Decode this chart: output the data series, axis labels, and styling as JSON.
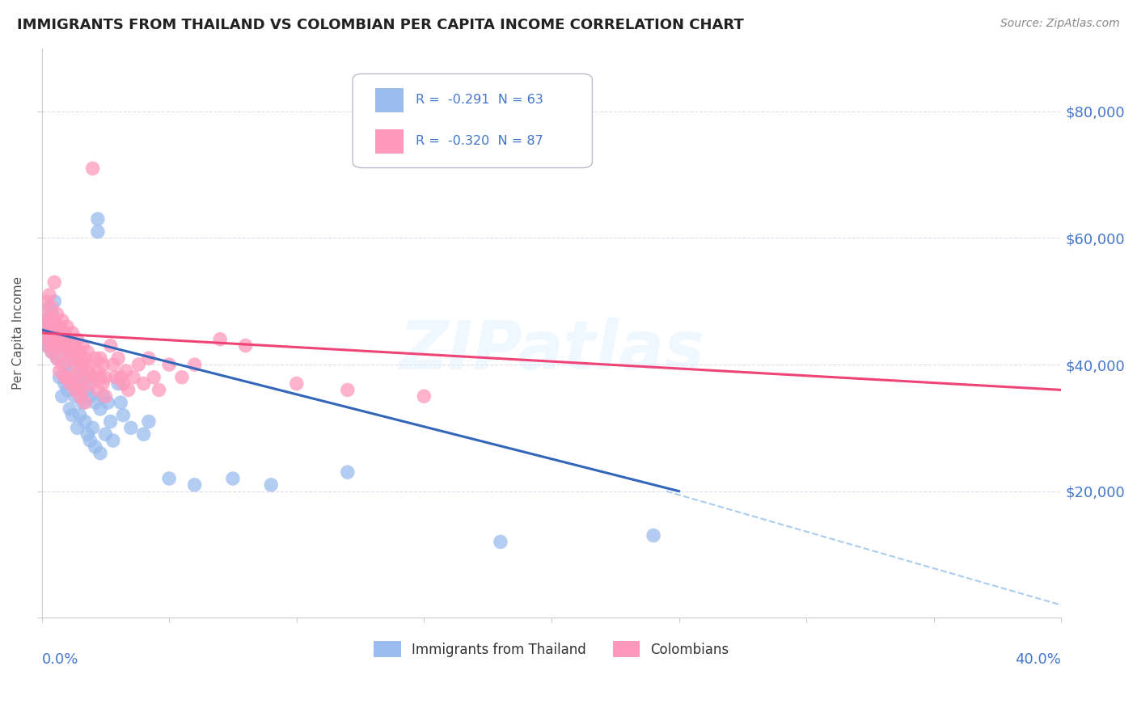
{
  "title": "IMMIGRANTS FROM THAILAND VS COLOMBIAN PER CAPITA INCOME CORRELATION CHART",
  "source": "Source: ZipAtlas.com",
  "ylabel": "Per Capita Income",
  "yticks": [
    0,
    20000,
    40000,
    60000,
    80000
  ],
  "ytick_labels": [
    "",
    "$20,000",
    "$40,000",
    "$60,000",
    "$80,000"
  ],
  "xmin": 0.0,
  "xmax": 0.4,
  "ymin": 0,
  "ymax": 90000,
  "color_thailand": "#99BBEE",
  "color_colombia": "#FF99BB",
  "color_line_thailand": "#3366BB",
  "color_line_colombia": "#EE4477",
  "color_dashed": "#AACCEE",
  "color_axis_labels": "#4477CC",
  "watermark": "ZIPatlas",
  "thailand_line": [
    0.0,
    45500,
    0.25,
    20000
  ],
  "colombia_line": [
    0.0,
    45000,
    0.4,
    36000
  ],
  "dashed_line": [
    0.245,
    20000,
    0.4,
    2000
  ],
  "thailand_scatter": [
    [
      0.001,
      47000
    ],
    [
      0.002,
      46000
    ],
    [
      0.002,
      43000
    ],
    [
      0.003,
      49000
    ],
    [
      0.003,
      44000
    ],
    [
      0.004,
      48000
    ],
    [
      0.004,
      42000
    ],
    [
      0.005,
      50000
    ],
    [
      0.005,
      45000
    ],
    [
      0.006,
      44000
    ],
    [
      0.006,
      41000
    ],
    [
      0.007,
      46000
    ],
    [
      0.007,
      38000
    ],
    [
      0.008,
      43000
    ],
    [
      0.008,
      35000
    ],
    [
      0.009,
      40000
    ],
    [
      0.009,
      37000
    ],
    [
      0.01,
      44000
    ],
    [
      0.01,
      36000
    ],
    [
      0.011,
      42000
    ],
    [
      0.011,
      33000
    ],
    [
      0.012,
      39000
    ],
    [
      0.012,
      32000
    ],
    [
      0.013,
      41000
    ],
    [
      0.013,
      35000
    ],
    [
      0.014,
      38000
    ],
    [
      0.014,
      30000
    ],
    [
      0.015,
      37000
    ],
    [
      0.015,
      32000
    ],
    [
      0.016,
      40000
    ],
    [
      0.016,
      34000
    ],
    [
      0.017,
      38000
    ],
    [
      0.017,
      31000
    ],
    [
      0.018,
      36000
    ],
    [
      0.018,
      29000
    ],
    [
      0.019,
      35000
    ],
    [
      0.019,
      28000
    ],
    [
      0.02,
      38000
    ],
    [
      0.02,
      30000
    ],
    [
      0.021,
      34000
    ],
    [
      0.021,
      27000
    ],
    [
      0.022,
      63000
    ],
    [
      0.022,
      61000
    ],
    [
      0.023,
      33000
    ],
    [
      0.023,
      26000
    ],
    [
      0.024,
      35000
    ],
    [
      0.025,
      29000
    ],
    [
      0.026,
      34000
    ],
    [
      0.027,
      31000
    ],
    [
      0.028,
      28000
    ],
    [
      0.03,
      37000
    ],
    [
      0.031,
      34000
    ],
    [
      0.032,
      32000
    ],
    [
      0.035,
      30000
    ],
    [
      0.04,
      29000
    ],
    [
      0.042,
      31000
    ],
    [
      0.05,
      22000
    ],
    [
      0.06,
      21000
    ],
    [
      0.075,
      22000
    ],
    [
      0.09,
      21000
    ],
    [
      0.12,
      23000
    ],
    [
      0.18,
      12000
    ],
    [
      0.24,
      13000
    ]
  ],
  "colombia_scatter": [
    [
      0.001,
      48000
    ],
    [
      0.001,
      45000
    ],
    [
      0.002,
      50000
    ],
    [
      0.002,
      46000
    ],
    [
      0.002,
      43000
    ],
    [
      0.003,
      51000
    ],
    [
      0.003,
      47000
    ],
    [
      0.003,
      44000
    ],
    [
      0.004,
      49000
    ],
    [
      0.004,
      45000
    ],
    [
      0.004,
      42000
    ],
    [
      0.005,
      53000
    ],
    [
      0.005,
      47000
    ],
    [
      0.005,
      43000
    ],
    [
      0.006,
      48000
    ],
    [
      0.006,
      45000
    ],
    [
      0.006,
      41000
    ],
    [
      0.007,
      46000
    ],
    [
      0.007,
      43000
    ],
    [
      0.007,
      39000
    ],
    [
      0.008,
      47000
    ],
    [
      0.008,
      44000
    ],
    [
      0.008,
      40000
    ],
    [
      0.009,
      45000
    ],
    [
      0.009,
      43000
    ],
    [
      0.009,
      38000
    ],
    [
      0.01,
      46000
    ],
    [
      0.01,
      42000
    ],
    [
      0.01,
      38000
    ],
    [
      0.011,
      44000
    ],
    [
      0.011,
      41000
    ],
    [
      0.011,
      37000
    ],
    [
      0.012,
      45000
    ],
    [
      0.012,
      42000
    ],
    [
      0.012,
      38000
    ],
    [
      0.013,
      43000
    ],
    [
      0.013,
      40000
    ],
    [
      0.013,
      36000
    ],
    [
      0.014,
      44000
    ],
    [
      0.014,
      41000
    ],
    [
      0.014,
      37000
    ],
    [
      0.015,
      42000
    ],
    [
      0.015,
      39000
    ],
    [
      0.015,
      35000
    ],
    [
      0.016,
      43000
    ],
    [
      0.016,
      40000
    ],
    [
      0.016,
      36000
    ],
    [
      0.017,
      41000
    ],
    [
      0.017,
      38000
    ],
    [
      0.017,
      34000
    ],
    [
      0.018,
      42000
    ],
    [
      0.018,
      39000
    ],
    [
      0.019,
      40000
    ],
    [
      0.019,
      37000
    ],
    [
      0.02,
      71000
    ],
    [
      0.021,
      41000
    ],
    [
      0.021,
      38000
    ],
    [
      0.022,
      39000
    ],
    [
      0.022,
      36000
    ],
    [
      0.023,
      41000
    ],
    [
      0.023,
      38000
    ],
    [
      0.024,
      40000
    ],
    [
      0.024,
      37000
    ],
    [
      0.025,
      38000
    ],
    [
      0.025,
      35000
    ],
    [
      0.027,
      43000
    ],
    [
      0.028,
      40000
    ],
    [
      0.029,
      38000
    ],
    [
      0.03,
      41000
    ],
    [
      0.031,
      38000
    ],
    [
      0.032,
      37000
    ],
    [
      0.033,
      39000
    ],
    [
      0.034,
      36000
    ],
    [
      0.036,
      38000
    ],
    [
      0.038,
      40000
    ],
    [
      0.04,
      37000
    ],
    [
      0.042,
      41000
    ],
    [
      0.044,
      38000
    ],
    [
      0.046,
      36000
    ],
    [
      0.05,
      40000
    ],
    [
      0.055,
      38000
    ],
    [
      0.06,
      40000
    ],
    [
      0.07,
      44000
    ],
    [
      0.08,
      43000
    ],
    [
      0.1,
      37000
    ],
    [
      0.12,
      36000
    ],
    [
      0.15,
      35000
    ]
  ]
}
